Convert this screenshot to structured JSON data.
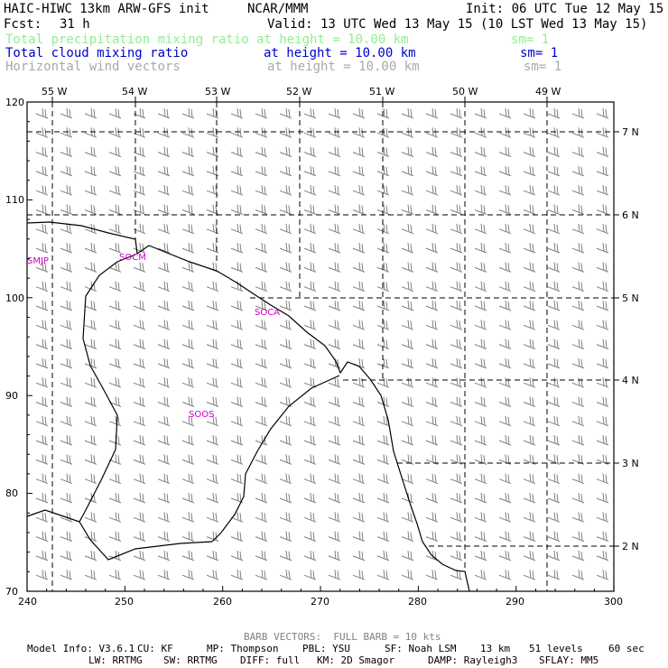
{
  "header": {
    "title": "HAIC-HIWC 13km ARW-GFS init",
    "org": "NCAR/MMM",
    "init": "Init: 06 UTC Tue 12 May 15",
    "fcst_label": "Fcst:",
    "fcst_value": "31 h",
    "valid": "Valid: 13 UTC Wed 13 May 15 (10 LST Wed 13 May 15)"
  },
  "fields": [
    {
      "name": "Total precipitation mixing ratio",
      "height": "at height = 10.00 km",
      "sm": "sm= 1",
      "color": "#90ee90"
    },
    {
      "name": "Total cloud mixing ratio",
      "height": "at height = 10.00 km",
      "sm": "sm= 1",
      "color": "#0000cd"
    },
    {
      "name": "Horizontal wind vectors",
      "height": "at height = 10.00 km",
      "sm": "sm= 1",
      "color": "#a9a9a9"
    }
  ],
  "map": {
    "top_lon_labels": [
      "55 W",
      "54 W",
      "53 W",
      "52 W",
      "51 W",
      "50 W",
      "49 W"
    ],
    "right_lat_labels": [
      "7 N",
      "6 N",
      "5 N",
      "4 N",
      "3 N",
      "2 N"
    ],
    "left_ticks": [
      "120",
      "110",
      "100",
      "90",
      "80",
      "70"
    ],
    "bottom_ticks": [
      "240",
      "250",
      "260",
      "270",
      "280",
      "290",
      "300"
    ],
    "stations": [
      "SMJP",
      "SOCM",
      "SOCA",
      "SOOS"
    ],
    "coast_color": "#000000",
    "station_color": "#cc00cc",
    "barb_color": "#808080"
  },
  "footer": {
    "barb_note": "BARB VECTORS:  FULL BARB = 10 kts",
    "line1": [
      "Model Info: V3.6.1",
      "CU: KF",
      "MP: Thompson",
      "PBL: YSU",
      "SF: Noah LSM",
      "13 km",
      "51 levels",
      "60 sec"
    ],
    "line2": [
      "LW: RRTMG",
      "SW: RRTMG",
      "DIFF: full",
      "KM: 2D Smagor",
      "DAMP: Rayleigh3",
      "SFLAY: MM5"
    ]
  }
}
